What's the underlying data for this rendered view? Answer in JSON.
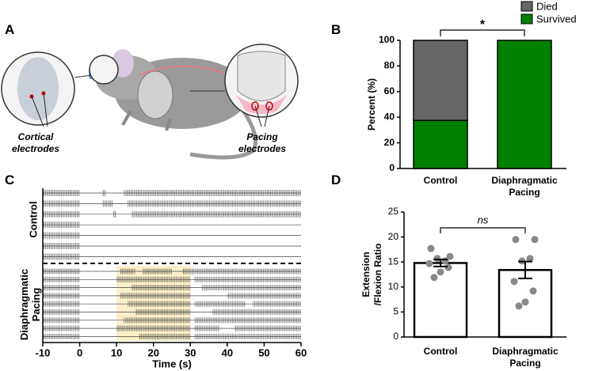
{
  "illustration": {
    "panel": "A",
    "annotations": [
      "Cortical electrodes",
      "Pacing electrodes"
    ]
  },
  "chart_data": [
    {
      "type": "stacked_bar",
      "panel": "B",
      "ylabel": "Percent (%)",
      "categories": [
        "Control",
        "Diaphragmatic Pacing"
      ],
      "series": [
        {
          "name": "Died",
          "color": "#666666",
          "values": [
            62.5,
            0
          ]
        },
        {
          "name": "Survived",
          "color": "#008000",
          "values": [
            37.5,
            100
          ]
        }
      ],
      "ylim": [
        0,
        100
      ],
      "yticks": [
        0,
        20,
        40,
        60,
        80,
        100
      ],
      "legend": "top-right",
      "annotation": "*"
    },
    {
      "type": "raster",
      "panel": "C",
      "xlabel": "Time (s)",
      "xlim": [
        -10,
        60
      ],
      "xticks": [
        -10,
        0,
        10,
        20,
        30,
        40,
        50,
        60
      ],
      "groups": [
        {
          "name": "Control",
          "rows": [
            [
              [
                -10,
                0
              ],
              [
                6,
                7
              ],
              [
                12,
                60
              ]
            ],
            [
              [
                -10,
                0
              ],
              [
                6,
                9
              ],
              [
                13,
                60
              ]
            ],
            [
              [
                -10,
                0
              ],
              [
                9,
                10
              ],
              [
                14,
                60
              ]
            ],
            [
              [
                -10,
                0
              ]
            ],
            [
              [
                -10,
                0
              ]
            ],
            [
              [
                -10,
                0
              ]
            ],
            [
              [
                -10,
                0
              ]
            ]
          ]
        },
        {
          "name": "Diaphragmatic Pacing",
          "highlight": [
            10,
            30
          ],
          "rows": [
            [
              [
                -10,
                0
              ],
              [
                11,
                15
              ],
              [
                17,
                25
              ],
              [
                28,
                60
              ]
            ],
            [
              [
                -10,
                0
              ],
              [
                10,
                30
              ],
              [
                31,
                60
              ]
            ],
            [
              [
                -10,
                0
              ],
              [
                14,
                30
              ],
              [
                33,
                60
              ]
            ],
            [
              [
                -10,
                0
              ],
              [
                11,
                30
              ],
              [
                40,
                60
              ]
            ],
            [
              [
                -10,
                0
              ],
              [
                13,
                30
              ],
              [
                31,
                45
              ],
              [
                47,
                60
              ]
            ],
            [
              [
                -10,
                0
              ],
              [
                15,
                30
              ],
              [
                36,
                60
              ]
            ],
            [
              [
                -10,
                0
              ],
              [
                12,
                30
              ],
              [
                31,
                60
              ]
            ],
            [
              [
                -10,
                0
              ],
              [
                10,
                30
              ],
              [
                31,
                38
              ],
              [
                42,
                60
              ]
            ],
            [
              [
                -10,
                0
              ],
              [
                16,
                30
              ],
              [
                31,
                60
              ]
            ]
          ]
        }
      ]
    },
    {
      "type": "bar_scatter",
      "panel": "D",
      "ylabel": [
        "Extension",
        "/Flexion Ratio"
      ],
      "categories": [
        "Control",
        "Diaphragmatic Pacing"
      ],
      "values": [
        14.8,
        13.4
      ],
      "errors": [
        0.7,
        1.7
      ],
      "points": [
        [
          17.7,
          16.1,
          15.7,
          15.2,
          14.7,
          13.9,
          13.0,
          11.9
        ],
        [
          19.5,
          19.5,
          15.2,
          15.7,
          11.1,
          9.2,
          7.0,
          6.2
        ]
      ],
      "color": "#ffffff",
      "point_color": "#888888",
      "ylim": [
        0,
        25
      ],
      "yticks": [
        0,
        5,
        10,
        15,
        20,
        25
      ],
      "annotation": "ns"
    }
  ]
}
